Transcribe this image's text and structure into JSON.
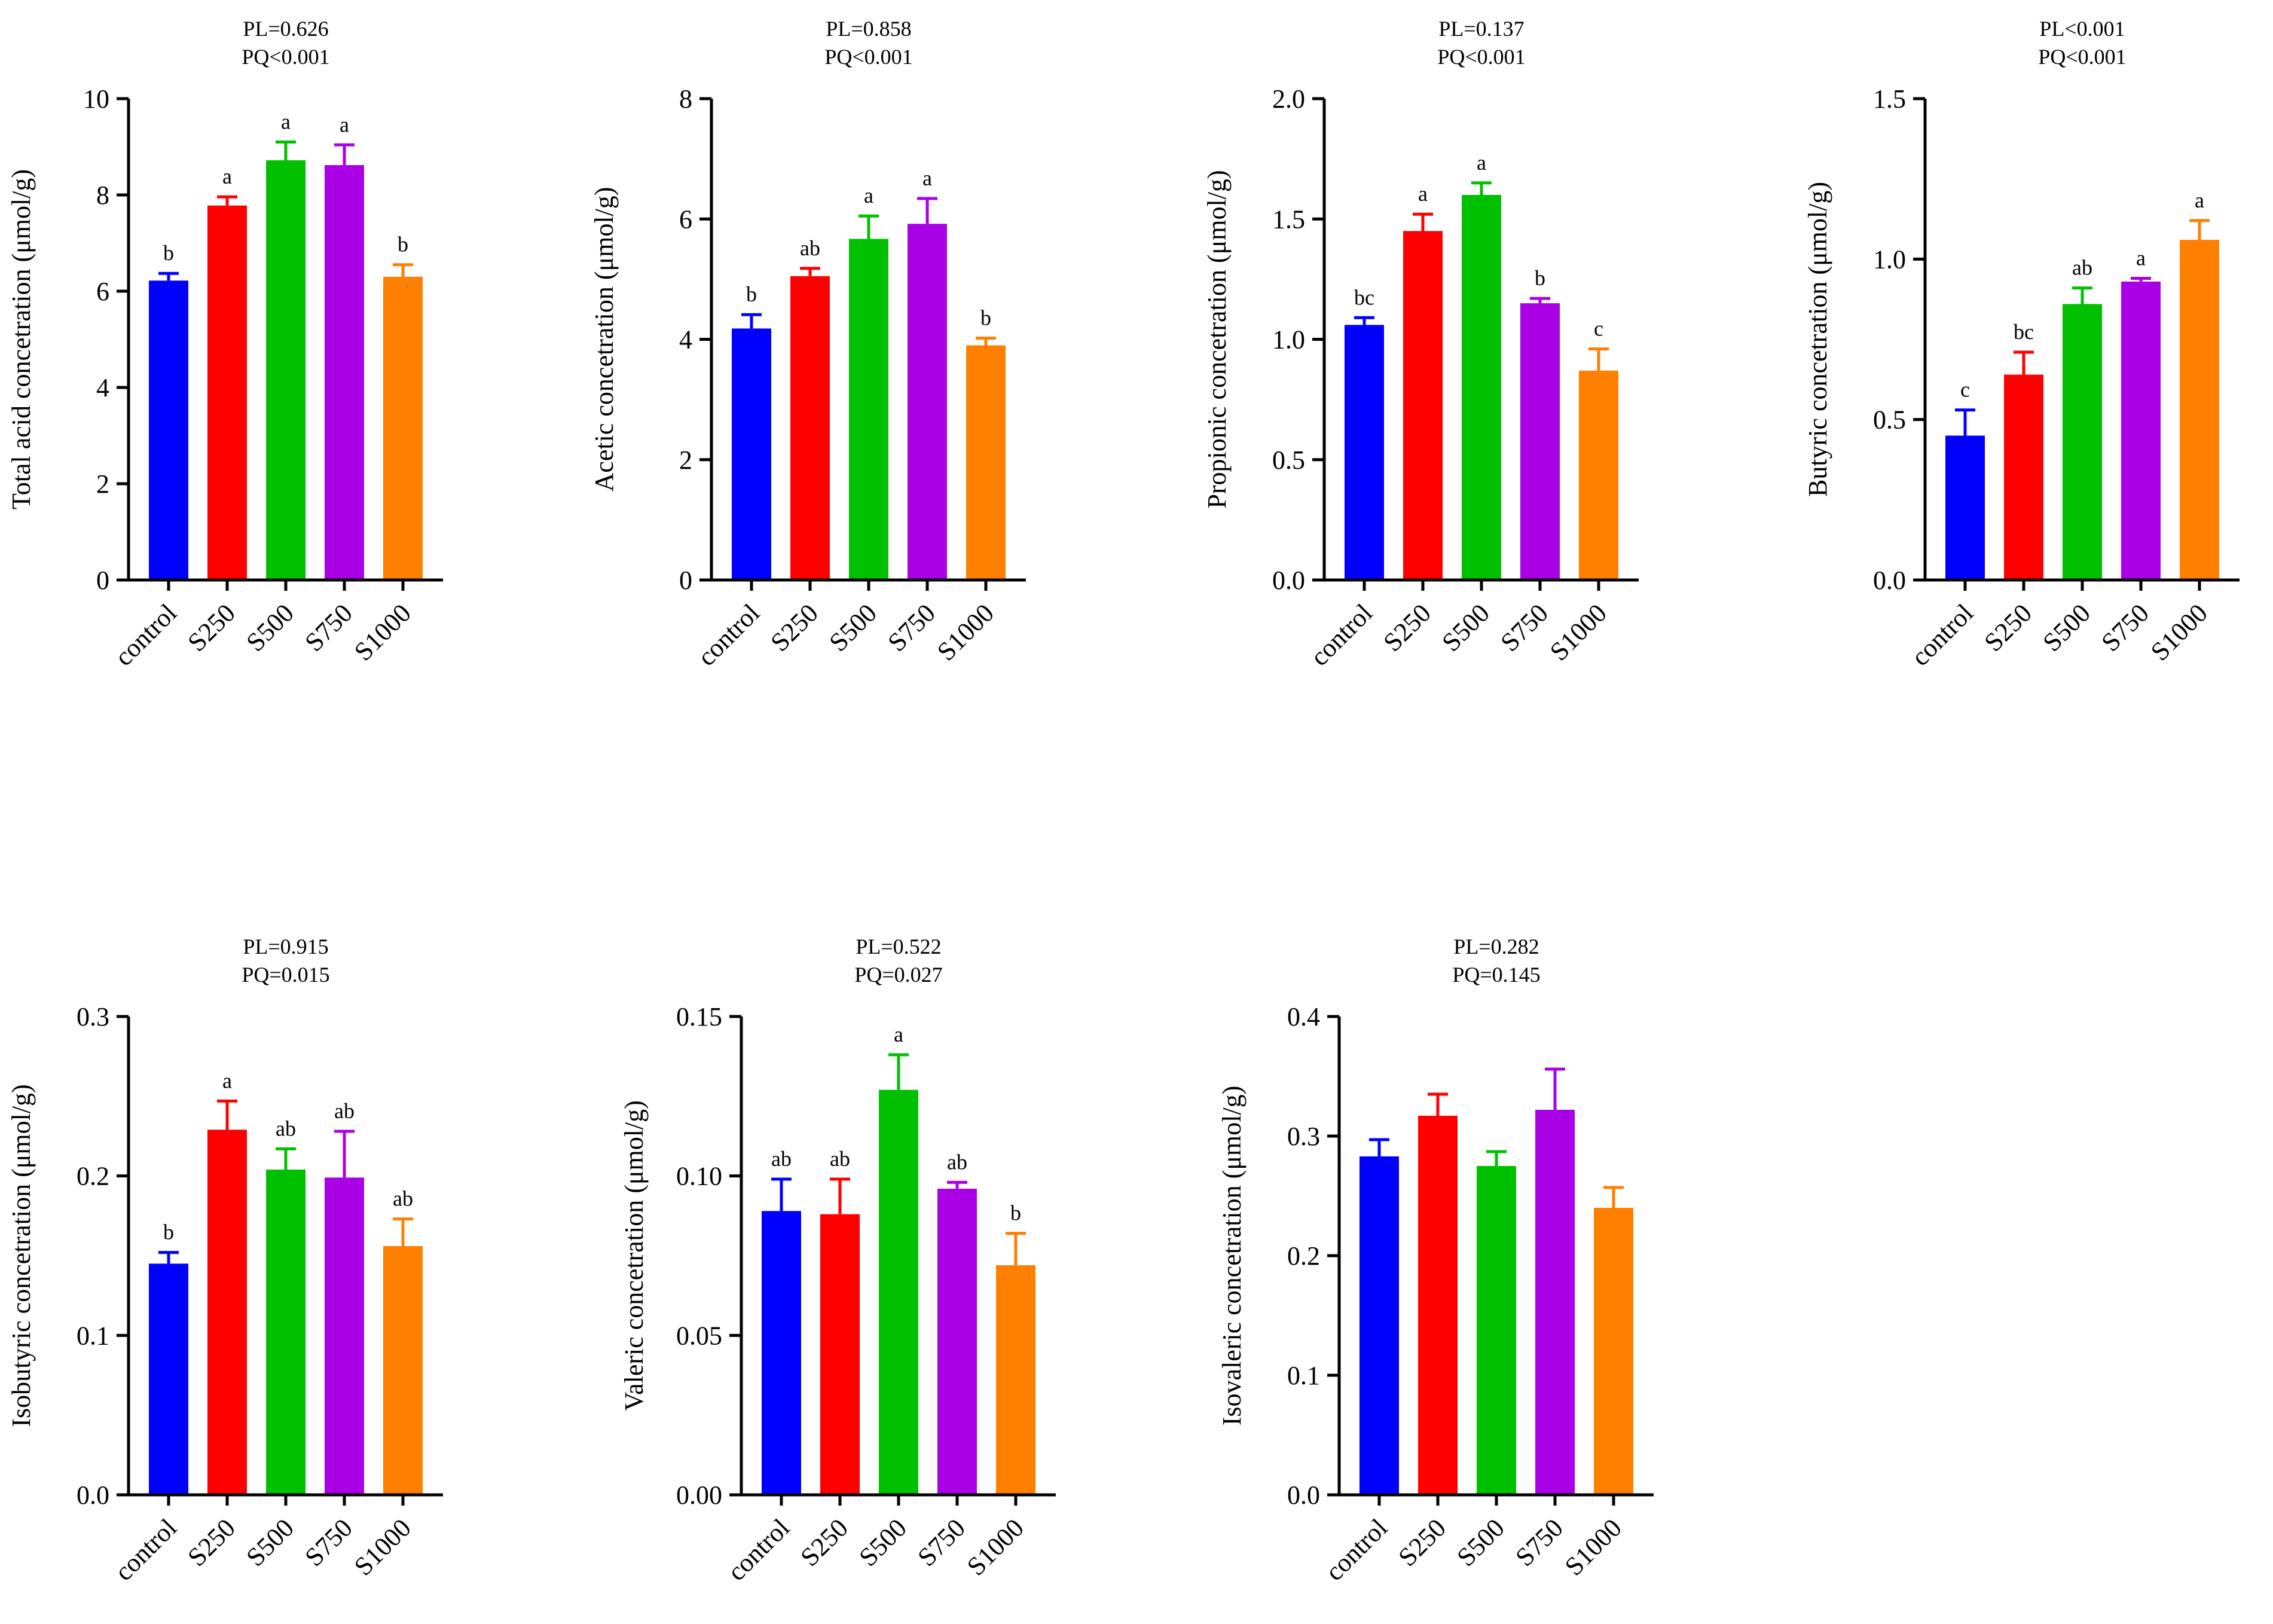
{
  "colors": {
    "control": "#0000ff",
    "S250": "#ff0000",
    "S500": "#00c000",
    "S750": "#aa00e6",
    "S1000": "#ff8000"
  },
  "chart_data": [
    {
      "type": "bar",
      "stats_line1": "PL=0.626",
      "stats_line2": "PQ<0.001",
      "ylabel": "Total acid concetration (μmol/g)",
      "categories": [
        "control",
        "S250",
        "S500",
        "S750",
        "S1000"
      ],
      "values": [
        6.22,
        7.78,
        8.72,
        8.62,
        6.3
      ],
      "errors": [
        0.15,
        0.18,
        0.38,
        0.42,
        0.25
      ],
      "letters": [
        "b",
        "a",
        "a",
        "a",
        "b"
      ],
      "ylim": [
        0,
        10
      ],
      "yticks": [
        0,
        2,
        4,
        6,
        8,
        10
      ],
      "ytick_labels": [
        "0",
        "2",
        "4",
        "6",
        "8",
        "10"
      ]
    },
    {
      "type": "bar",
      "stats_line1": "PL=0.858",
      "stats_line2": "PQ<0.001",
      "ylabel": "Acetic concetration (μmol/g)",
      "categories": [
        "control",
        "S250",
        "S500",
        "S750",
        "S1000"
      ],
      "values": [
        4.18,
        5.05,
        5.67,
        5.92,
        3.9
      ],
      "errors": [
        0.23,
        0.13,
        0.38,
        0.42,
        0.12
      ],
      "letters": [
        "b",
        "ab",
        "a",
        "a",
        "b"
      ],
      "ylim": [
        0,
        8
      ],
      "yticks": [
        0,
        2,
        4,
        6,
        8
      ],
      "ytick_labels": [
        "0",
        "2",
        "4",
        "6",
        "8"
      ]
    },
    {
      "type": "bar",
      "stats_line1": "PL=0.137",
      "stats_line2": "PQ<0.001",
      "ylabel": "Propionic concetration (μmol/g)",
      "categories": [
        "control",
        "S250",
        "S500",
        "S750",
        "S1000"
      ],
      "values": [
        1.06,
        1.45,
        1.6,
        1.15,
        0.87
      ],
      "errors": [
        0.03,
        0.07,
        0.05,
        0.02,
        0.09
      ],
      "letters": [
        "bc",
        "a",
        "a",
        "b",
        "c"
      ],
      "ylim": [
        0,
        2.0
      ],
      "yticks": [
        0,
        0.5,
        1.0,
        1.5,
        2.0
      ],
      "ytick_labels": [
        "0.0",
        "0.5",
        "1.0",
        "1.5",
        "2.0"
      ]
    },
    {
      "type": "bar",
      "stats_line1": "PL<0.001",
      "stats_line2": "PQ<0.001",
      "ylabel": "Butyric concetration (μmol/g)",
      "categories": [
        "control",
        "S250",
        "S500",
        "S750",
        "S1000"
      ],
      "values": [
        0.45,
        0.64,
        0.86,
        0.93,
        1.06
      ],
      "errors": [
        0.08,
        0.07,
        0.05,
        0.01,
        0.06
      ],
      "letters": [
        "c",
        "bc",
        "ab",
        "a",
        "a"
      ],
      "ylim": [
        0,
        1.5
      ],
      "yticks": [
        0,
        0.5,
        1.0,
        1.5
      ],
      "ytick_labels": [
        "0.0",
        "0.5",
        "1.0",
        "1.5"
      ]
    },
    {
      "type": "bar",
      "stats_line1": "PL=0.915",
      "stats_line2": "PQ=0.015",
      "ylabel": "Isobutyric concetration (μmol/g)",
      "categories": [
        "control",
        "S250",
        "S500",
        "S750",
        "S1000"
      ],
      "values": [
        0.145,
        0.229,
        0.204,
        0.199,
        0.156
      ],
      "errors": [
        0.007,
        0.018,
        0.013,
        0.029,
        0.017
      ],
      "letters": [
        "b",
        "a",
        "ab",
        "ab",
        "ab"
      ],
      "ylim": [
        0,
        0.3
      ],
      "yticks": [
        0,
        0.1,
        0.2,
        0.3
      ],
      "ytick_labels": [
        "0.0",
        "0.1",
        "0.2",
        "0.3"
      ]
    },
    {
      "type": "bar",
      "stats_line1": "PL=0.522",
      "stats_line2": "PQ=0.027",
      "ylabel": "Valeric concetration (μmol/g)",
      "categories": [
        "control",
        "S250",
        "S500",
        "S750",
        "S1000"
      ],
      "values": [
        0.089,
        0.088,
        0.127,
        0.096,
        0.072
      ],
      "errors": [
        0.01,
        0.011,
        0.011,
        0.002,
        0.01
      ],
      "letters": [
        "ab",
        "ab",
        "a",
        "ab",
        "b"
      ],
      "ylim": [
        0,
        0.15
      ],
      "yticks": [
        0,
        0.05,
        0.1,
        0.15
      ],
      "ytick_labels": [
        "0.00",
        "0.05",
        "0.10",
        "0.15"
      ]
    },
    {
      "type": "bar",
      "stats_line1": "PL=0.282",
      "stats_line2": "PQ=0.145",
      "ylabel": "Isovaleric concetration (μmol/g)",
      "categories": [
        "control",
        "S250",
        "S500",
        "S750",
        "S1000"
      ],
      "values": [
        0.283,
        0.317,
        0.275,
        0.322,
        0.24
      ],
      "errors": [
        0.014,
        0.018,
        0.012,
        0.034,
        0.017
      ],
      "letters": [
        "",
        "",
        "",
        "",
        ""
      ],
      "ylim": [
        0,
        0.4
      ],
      "yticks": [
        0,
        0.1,
        0.2,
        0.3,
        0.4
      ],
      "ytick_labels": [
        "0.0",
        "0.1",
        "0.2",
        "0.3",
        "0.4"
      ]
    }
  ]
}
